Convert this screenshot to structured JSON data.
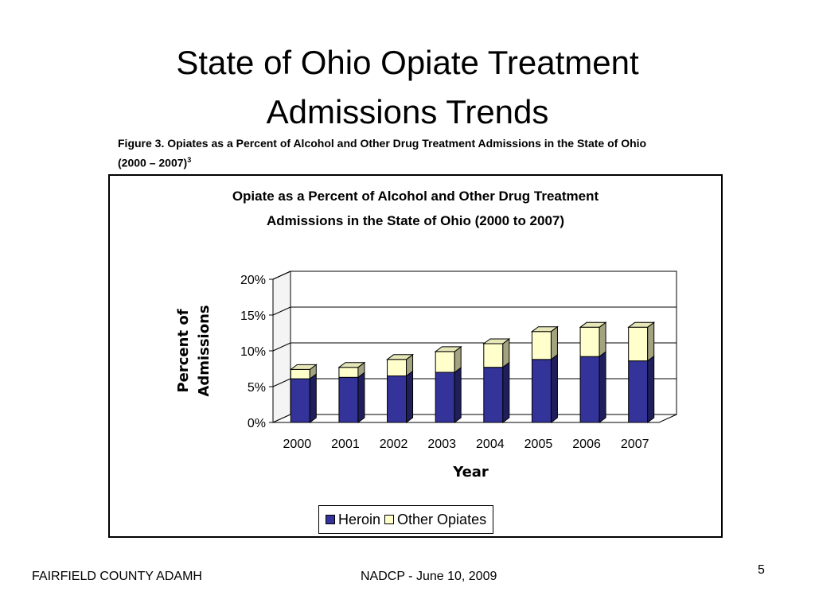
{
  "slide": {
    "title_line1": "State of Ohio Opiate Treatment",
    "title_line2": "Admissions Trends",
    "caption_line1": "Figure 3.  Opiates as a Percent of Alcohol and Other Drug Treatment Admissions in the State of Ohio",
    "caption_line2": "(2000 – 2007)",
    "caption_sup": "3",
    "footer_left": "FAIRFIELD COUNTY ADAMH",
    "footer_center": "NADCP - June 10, 2009",
    "page_number": "5"
  },
  "chart_data": {
    "type": "bar",
    "stacked": true,
    "three_d": true,
    "title_line1": "Opiate as a Percent of Alcohol and Other Drug Treatment",
    "title_line2": "Admissions in the State of Ohio (2000 to 2007)",
    "xlabel": "Year",
    "ylabel_line1": "Percent of",
    "ylabel_line2": "Admissions",
    "categories": [
      "2000",
      "2001",
      "2002",
      "2003",
      "2004",
      "2005",
      "2006",
      "2007"
    ],
    "ylim": [
      0,
      20
    ],
    "yticks": [
      "0%",
      "5%",
      "10%",
      "15%",
      "20%"
    ],
    "series": [
      {
        "name": "Heroin",
        "color": "#333399",
        "side": "#1f1f5e",
        "top": "#5b5bb8",
        "values": [
          6.1,
          6.3,
          6.5,
          7.0,
          7.7,
          8.8,
          9.2,
          8.6
        ]
      },
      {
        "name": "Other Opiates",
        "color": "#ffffcc",
        "side": "#a3a37f",
        "top": "#e6e6b8",
        "values": [
          1.3,
          1.4,
          2.3,
          2.9,
          3.3,
          3.9,
          4.1,
          4.7
        ]
      }
    ],
    "grid": true,
    "legend_position": "bottom"
  }
}
